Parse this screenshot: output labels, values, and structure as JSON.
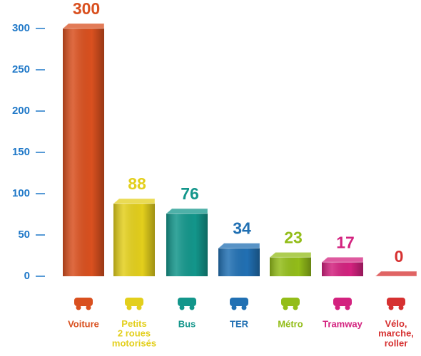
{
  "chart_data": {
    "type": "bar",
    "categories": [
      "Voiture",
      "Petits\n2 roues\nmotorisés",
      "Bus",
      "TER",
      "Métro",
      "Tramway",
      "Vélo,\nmarche,\nroller"
    ],
    "values": [
      300,
      88,
      76,
      34,
      23,
      17,
      0
    ],
    "colors": [
      "#d9501f",
      "#e3cf1c",
      "#13968b",
      "#2170b3",
      "#93bd19",
      "#d3227f",
      "#d63131"
    ],
    "ylim": [
      0,
      300
    ],
    "yticks": [
      0,
      50,
      100,
      150,
      200,
      250,
      300
    ]
  }
}
